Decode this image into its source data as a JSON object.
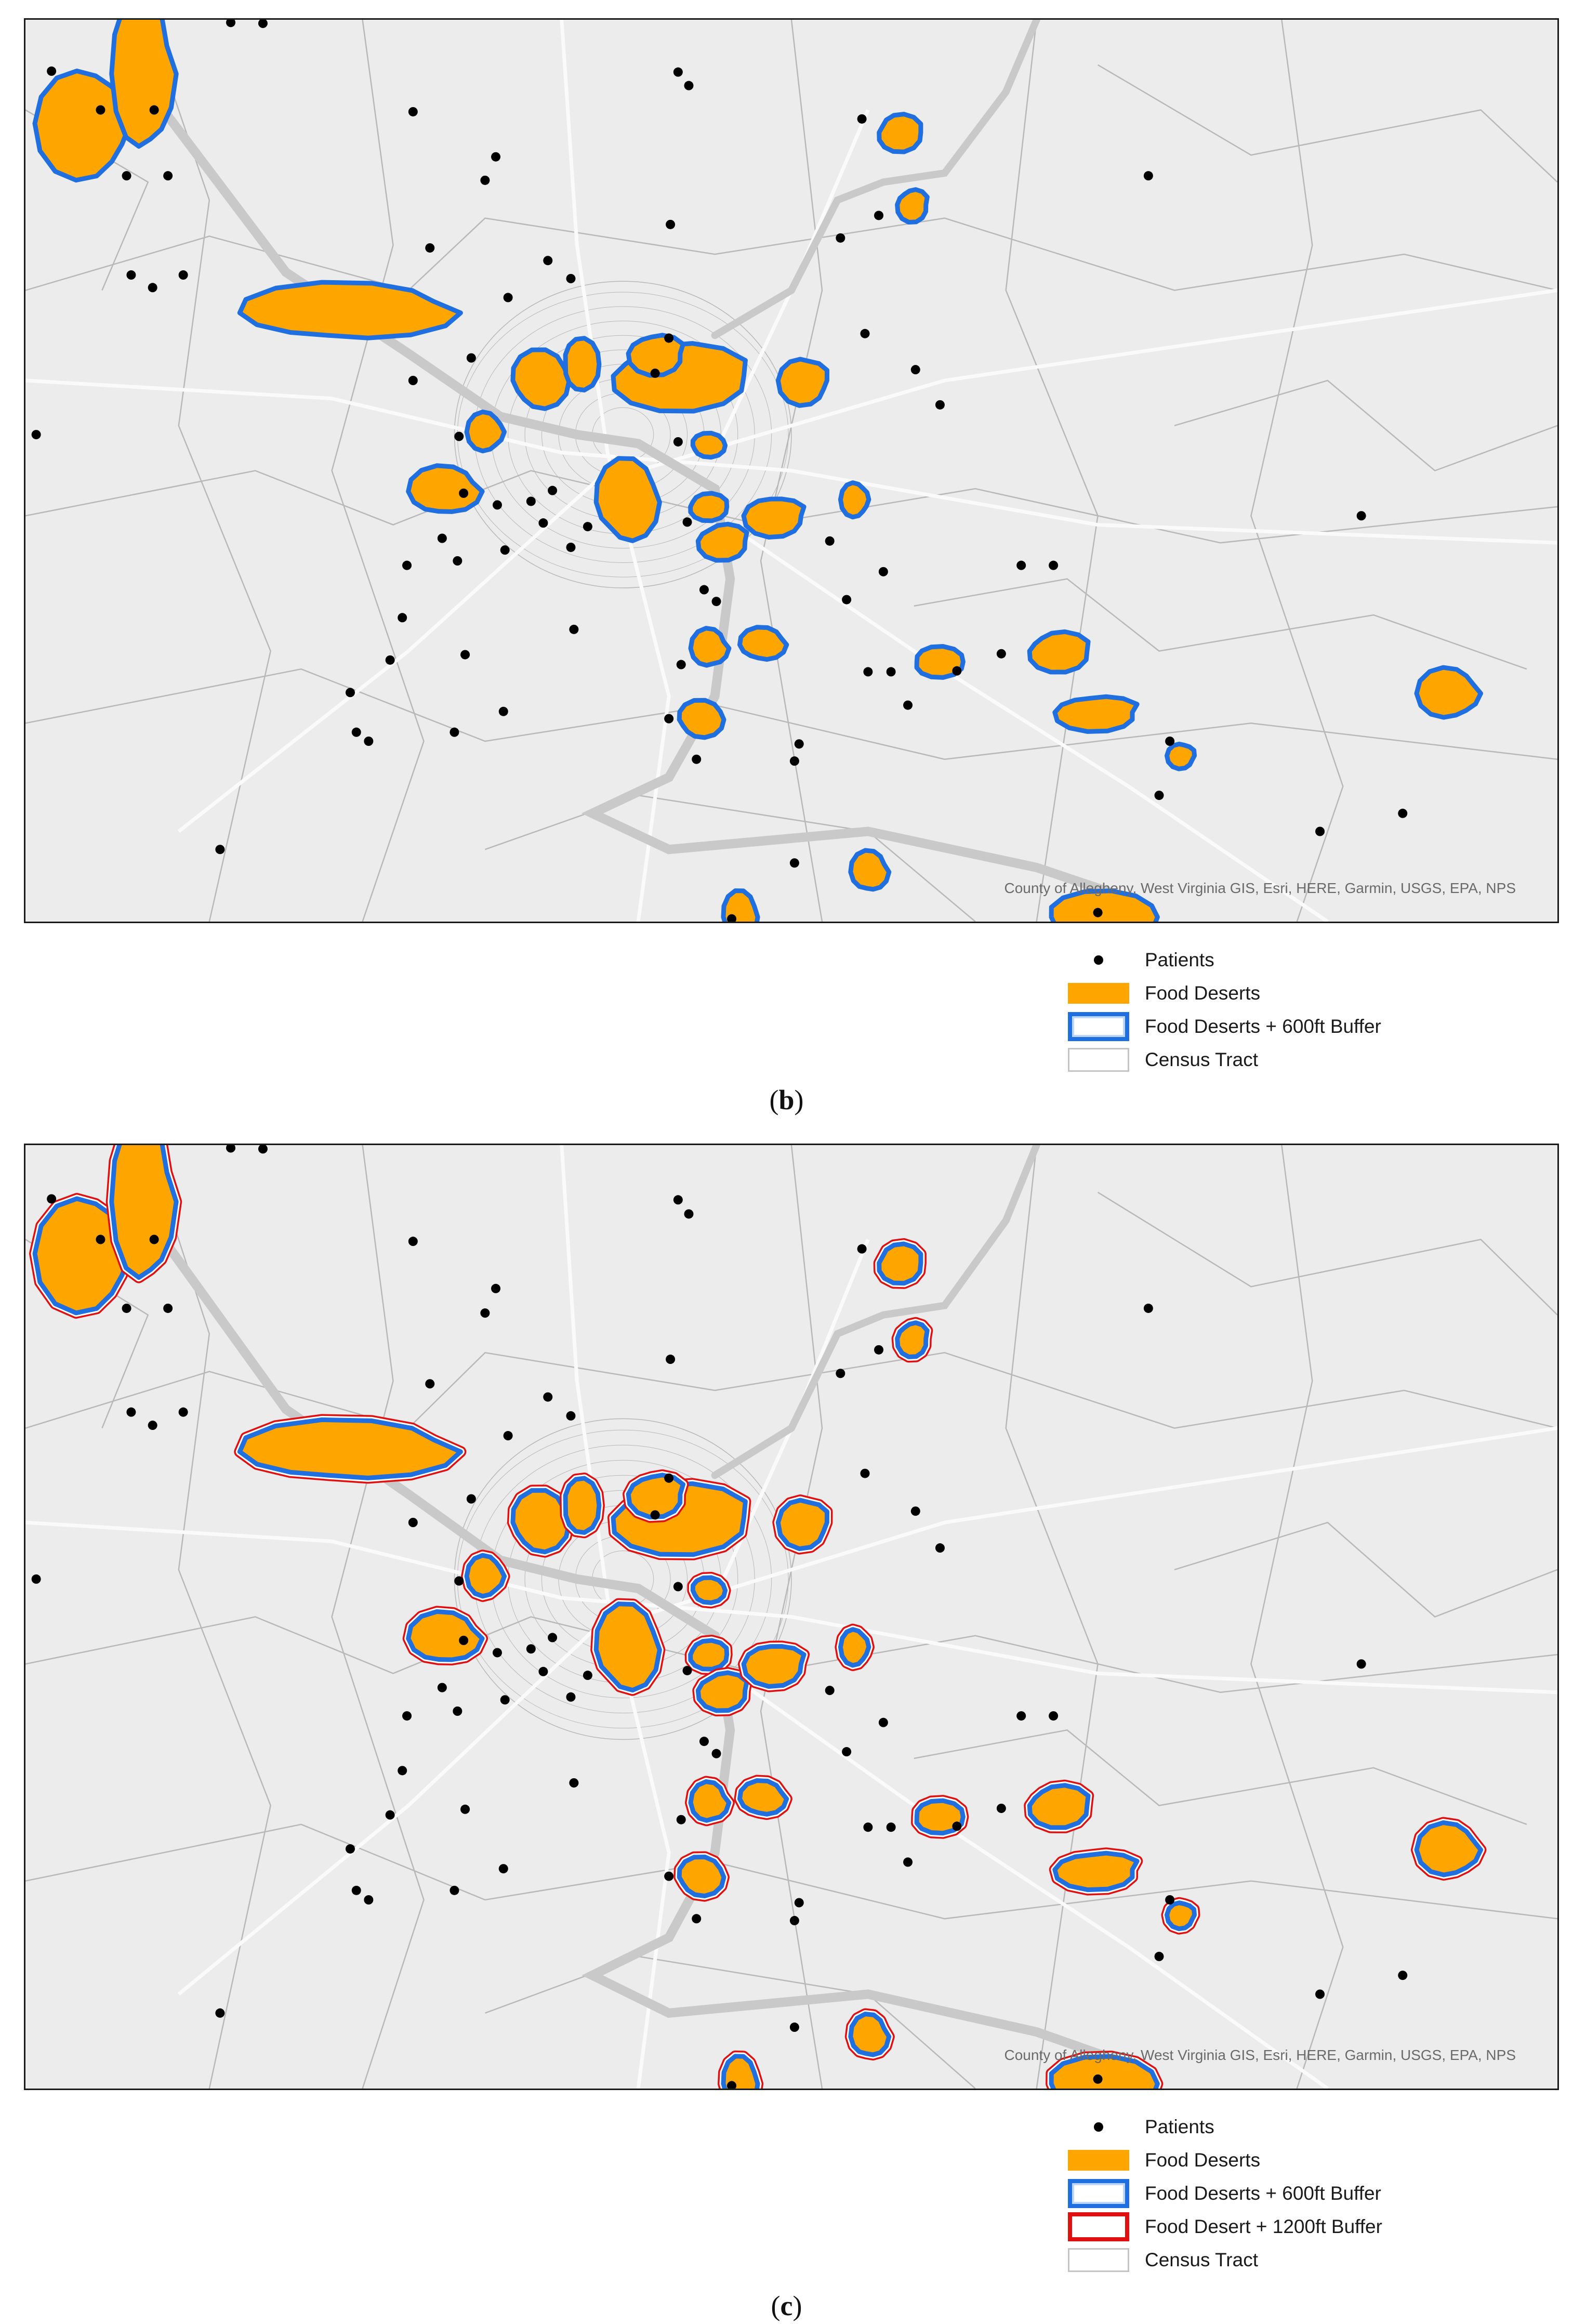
{
  "colors": {
    "land": "#ececec",
    "food_desert": "#ffa500",
    "buffer_600": "#1f6fe0",
    "buffer_1200": "#e01010",
    "tract_line": "#b8b8b8",
    "river": "#c9c9c9",
    "road": "#fafafa",
    "patient": "#000000"
  },
  "icons": {
    "patient": "dot-icon"
  },
  "attribution": "County of Allegheny, West Virginia GIS, Esri, HERE, Garmin, USGS, EPA, NPS",
  "panels": [
    {
      "id": "b",
      "caption_letter": "b",
      "legend": [
        {
          "symbol": "patient",
          "label": "Patients"
        },
        {
          "symbol": "food_desert",
          "label": "Food Deserts"
        },
        {
          "symbol": "buffer_600",
          "label": "Food Deserts + 600ft Buffer"
        },
        {
          "symbol": "census_tract",
          "label": "Census Tract"
        }
      ]
    },
    {
      "id": "c",
      "caption_letter": "c",
      "legend": [
        {
          "symbol": "patient",
          "label": "Patients"
        },
        {
          "symbol": "food_desert",
          "label": "Food Deserts"
        },
        {
          "symbol": "buffer_600",
          "label": "Food Deserts + 600ft Buffer"
        },
        {
          "symbol": "buffer_1200",
          "label": "Food Desert + 1200ft Buffer"
        },
        {
          "symbol": "census_tract",
          "label": "Census Tract"
        }
      ]
    }
  ]
}
